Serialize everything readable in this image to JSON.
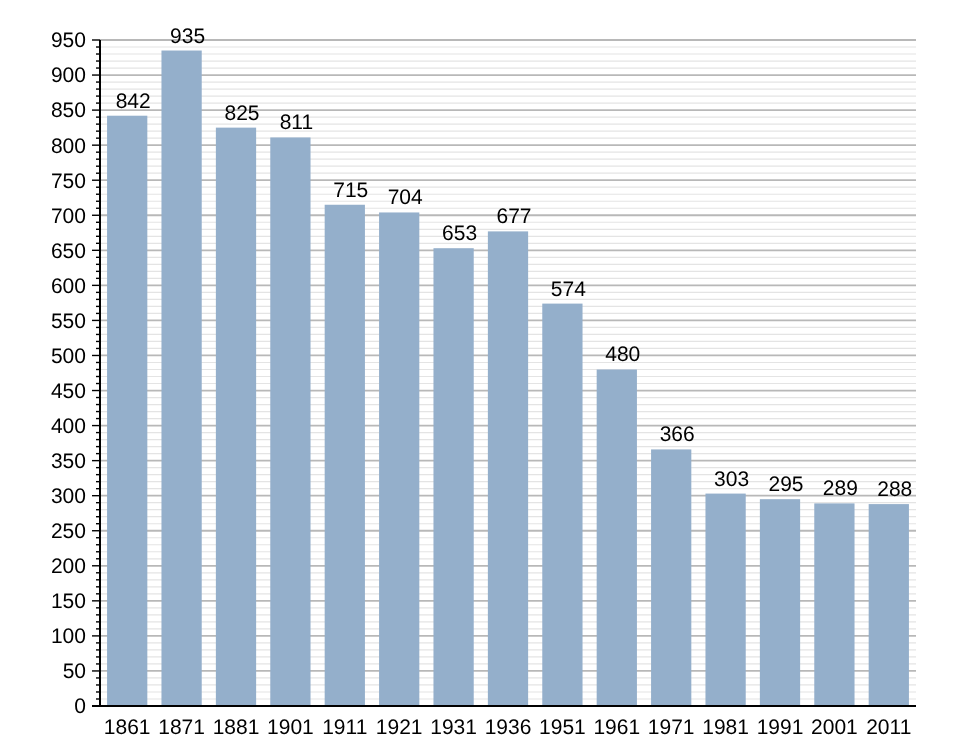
{
  "chart_data": {
    "type": "bar",
    "categories": [
      "1861",
      "1871",
      "1881",
      "1901",
      "1911",
      "1921",
      "1931",
      "1936",
      "1951",
      "1961",
      "1971",
      "1981",
      "1991",
      "2001",
      "2011"
    ],
    "values": [
      842,
      935,
      825,
      811,
      715,
      704,
      653,
      677,
      574,
      480,
      366,
      303,
      295,
      289,
      288
    ],
    "color": "#94afcb",
    "data_labels": true,
    "grid": true,
    "ylim": [
      0,
      950
    ],
    "yticks": [
      0,
      {
        "value": 10,
        "label": null
      },
      {
        "value": 20,
        "label": null
      },
      {
        "value": 30,
        "label": null
      },
      {
        "value": 40,
        "label": null
      },
      50,
      {
        "value": 60,
        "label": null
      },
      {
        "value": 70,
        "label": null
      },
      {
        "value": 80,
        "label": null
      },
      {
        "value": 90,
        "label": null
      },
      100,
      {
        "value": 110,
        "label": null
      },
      {
        "value": 120,
        "label": null
      },
      {
        "value": 130,
        "label": null
      },
      {
        "value": 140,
        "label": null
      },
      150,
      {
        "value": 160,
        "label": null
      },
      {
        "value": 170,
        "label": null
      },
      {
        "value": 180,
        "label": null
      },
      {
        "value": 190,
        "label": null
      },
      200,
      {
        "value": 210,
        "label": null
      },
      {
        "value": 220,
        "label": null
      },
      {
        "value": 230,
        "label": null
      },
      {
        "value": 240,
        "label": null
      },
      250,
      {
        "value": 260,
        "label": null
      },
      {
        "value": 270,
        "label": null
      },
      {
        "value": 280,
        "label": null
      },
      {
        "value": 290,
        "label": null
      },
      300,
      {
        "value": 310,
        "label": null
      },
      {
        "value": 320,
        "label": null
      },
      {
        "value": 330,
        "label": null
      },
      {
        "value": 340,
        "label": null
      },
      350,
      {
        "value": 360,
        "label": null
      },
      {
        "value": 370,
        "label": null
      },
      {
        "value": 380,
        "label": null
      },
      {
        "value": 390,
        "label": null
      },
      400,
      {
        "value": 410,
        "label": null
      },
      {
        "value": 420,
        "label": null
      },
      {
        "value": 430,
        "label": null
      },
      {
        "value": 440,
        "label": null
      },
      450,
      {
        "value": 460,
        "label": null
      },
      {
        "value": 470,
        "label": null
      },
      {
        "value": 480,
        "label": null
      },
      {
        "value": 490,
        "label": null
      },
      500,
      {
        "value": 510,
        "label": null
      },
      {
        "value": 520,
        "label": null
      },
      {
        "value": 530,
        "label": null
      },
      {
        "value": 540,
        "label": null
      },
      550,
      {
        "value": 560,
        "label": null
      },
      {
        "value": 570,
        "label": null
      },
      {
        "value": 580,
        "label": null
      },
      {
        "value": 590,
        "label": null
      },
      600,
      {
        "value": 610,
        "label": null
      },
      {
        "value": 620,
        "label": null
      },
      {
        "value": 630,
        "label": null
      },
      {
        "value": 640,
        "label": null
      },
      650,
      {
        "value": 660,
        "label": null
      },
      {
        "value": 670,
        "label": null
      },
      {
        "value": 680,
        "label": null
      },
      {
        "value": 690,
        "label": null
      },
      700,
      {
        "value": 710,
        "label": null
      },
      {
        "value": 720,
        "label": null
      },
      {
        "value": 730,
        "label": null
      },
      {
        "value": 740,
        "label": null
      },
      750,
      {
        "value": 760,
        "label": null
      },
      {
        "value": 770,
        "label": null
      },
      {
        "value": 780,
        "label": null
      },
      {
        "value": 790,
        "label": null
      },
      800,
      {
        "value": 810,
        "label": null
      },
      {
        "value": 820,
        "label": null
      },
      {
        "value": 830,
        "label": null
      },
      {
        "value": 840,
        "label": null
      },
      850,
      {
        "value": 860,
        "label": null
      },
      {
        "value": 870,
        "label": null
      },
      {
        "value": 880,
        "label": null
      },
      {
        "value": 890,
        "label": null
      },
      900,
      {
        "value": 910,
        "label": null
      },
      {
        "value": 920,
        "label": null
      },
      {
        "value": 930,
        "label": null
      },
      {
        "value": 940,
        "label": null
      },
      950
    ]
  }
}
